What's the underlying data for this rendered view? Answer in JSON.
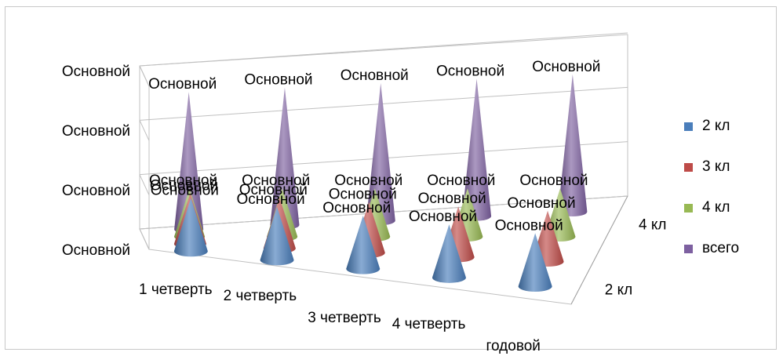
{
  "chart_data": {
    "type": "3d-cone",
    "categories": [
      "1 четверть",
      "2 четверть",
      "3 четверть",
      "4 четверть",
      "годовой"
    ],
    "series": [
      {
        "name": "2 кл",
        "color": "#4a7ebb",
        "values": [
          1,
          1,
          1,
          1,
          1
        ]
      },
      {
        "name": "3 кл",
        "color": "#be4b48",
        "values": [
          1,
          1,
          1,
          1,
          1
        ]
      },
      {
        "name": "4 кл",
        "color": "#98b954",
        "values": [
          1,
          1,
          1,
          1,
          1
        ]
      },
      {
        "name": "всего",
        "color": "#7d60a0",
        "values": [
          3,
          3,
          3,
          3,
          3
        ]
      }
    ],
    "value_tick_labels": [
      "Основной",
      "Основной",
      "Основной",
      "Основной"
    ],
    "depth_tick_labels": [
      "2 кл",
      "4 кл"
    ],
    "data_label_text": "Основной",
    "legend_position": "right"
  }
}
